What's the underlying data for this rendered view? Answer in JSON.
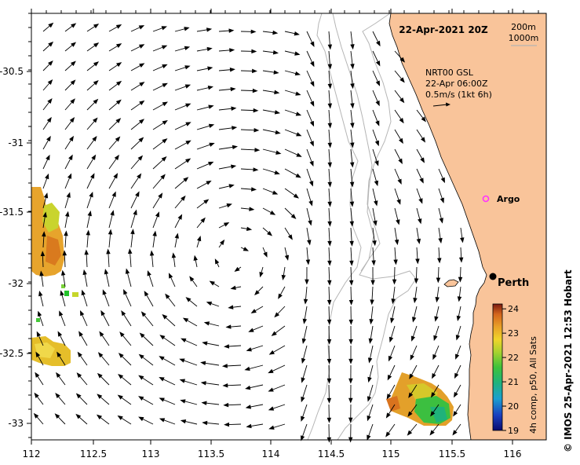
{
  "map": {
    "title": "22-Apr-2021 20Z",
    "contour_labels": [
      "200m",
      "1000m"
    ],
    "current_note": [
      "NRT00 GSL",
      "22-Apr 06:00Z",
      "0.5m/s (1kt 6h)"
    ],
    "x_ticks": [
      "112",
      "112.5",
      "113",
      "113.5",
      "114",
      "114.5",
      "115",
      "115.5",
      "116"
    ],
    "y_ticks": [
      "-30.5",
      "-31",
      "-31.5",
      "-32",
      "-32.5",
      "-33"
    ],
    "places": [
      {
        "name": "Argo",
        "marker": "circle-icon",
        "color": "#ff33ff"
      },
      {
        "name": "Perth",
        "marker": "dot-icon",
        "color": "#000000"
      }
    ],
    "colorbar": {
      "label": "4h comp, p50, All Sats",
      "ticks": [
        "24",
        "23",
        "22",
        "21",
        "20",
        "19"
      ],
      "min": 19,
      "max": 24.2
    },
    "credit": "© IMOS 25-Apr-2021 12:53 Hobart",
    "colors": {
      "land": "#f9c49a",
      "contour": "#b0b0b0",
      "arrows": "#000000"
    }
  }
}
